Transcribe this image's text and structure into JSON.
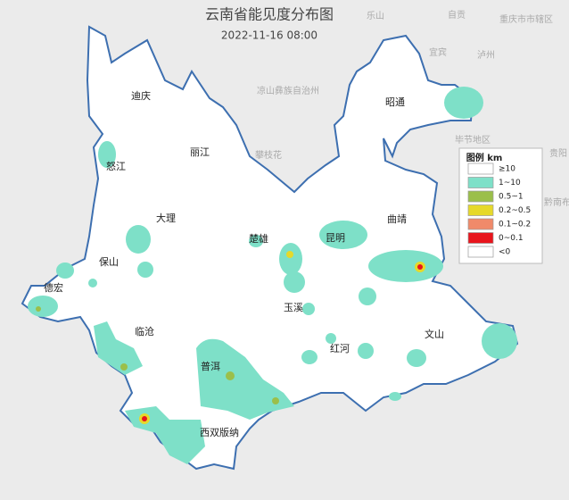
{
  "header": {
    "title": "云南省能见度分布图",
    "time": "2022-11-16 08:00"
  },
  "legend": {
    "title": "图例 km",
    "items": [
      {
        "label": "≥10",
        "color": "#ffffff"
      },
      {
        "label": "1~10",
        "color": "#7ee0c8"
      },
      {
        "label": "0.5~1",
        "color": "#9bbf4a"
      },
      {
        "label": "0.2~0.5",
        "color": "#e6d92a"
      },
      {
        "label": "0.1~0.2",
        "color": "#f08a6a"
      },
      {
        "label": "0~0.1",
        "color": "#e8141c"
      },
      {
        "label": "<0",
        "color": "#ffffff"
      }
    ]
  },
  "cities": [
    "迪庆",
    "怒江",
    "丽江",
    "大理",
    "保山",
    "德宏",
    "临沧",
    "普洱",
    "西双版纳",
    "楚雄",
    "昆明",
    "曲靖",
    "昭通",
    "玉溪",
    "红河",
    "文山"
  ],
  "neighbors": [
    "乐山",
    "自贡",
    "重庆市市辖区",
    "宜宾",
    "泸州",
    "凉山彝族自治州",
    "毕节地区",
    "攀枝花",
    "贵阳",
    "黔南布"
  ]
}
